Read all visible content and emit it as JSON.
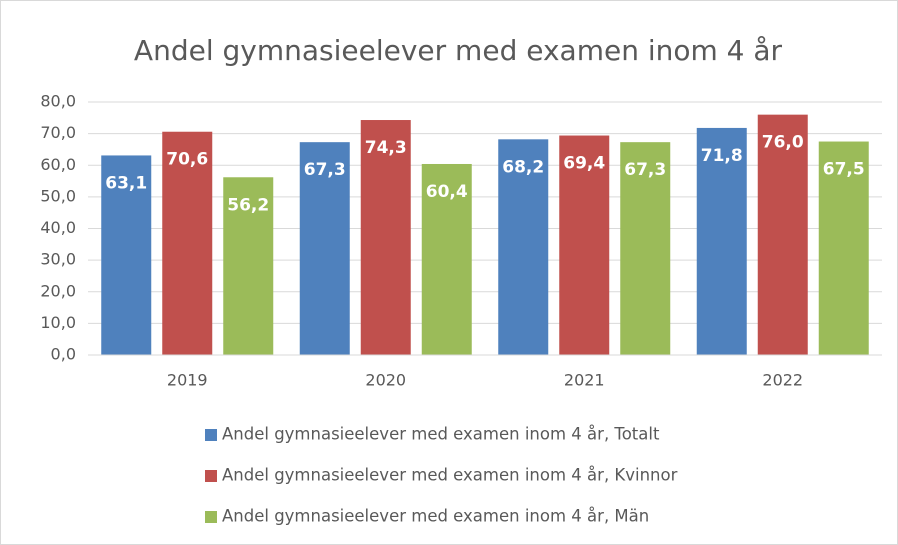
{
  "chart_data": {
    "type": "bar",
    "title": "Andel gymnasieelever med examen inom 4 år",
    "categories": [
      "2019",
      "2020",
      "2021",
      "2022"
    ],
    "series": [
      {
        "name": "Andel gymnasieelever med examen inom 4 år, Totalt",
        "color": "#4f81bd",
        "values": [
          63.1,
          67.3,
          68.2,
          71.8
        ],
        "value_labels": [
          "63,1",
          "67,3",
          "68,2",
          "71,8"
        ]
      },
      {
        "name": "Andel gymnasieelever med examen inom 4 år, Kvinnor",
        "color": "#c0504d",
        "values": [
          70.6,
          74.3,
          69.4,
          76.0
        ],
        "value_labels": [
          "70,6",
          "74,3",
          "69,4",
          "76,0"
        ]
      },
      {
        "name": "Andel gymnasieelever med examen inom 4 år, Män",
        "color": "#9bbb59",
        "values": [
          56.2,
          60.4,
          67.3,
          67.5
        ],
        "value_labels": [
          "56,2",
          "60,4",
          "67,3",
          "67,5"
        ]
      }
    ],
    "ylim": [
      0,
      80
    ],
    "yticks": [
      {
        "value": 0,
        "label": "0,0"
      },
      {
        "value": 10,
        "label": "10,0"
      },
      {
        "value": 20,
        "label": "20,0"
      },
      {
        "value": 30,
        "label": "30,0"
      },
      {
        "value": 40,
        "label": "40,0"
      },
      {
        "value": 50,
        "label": "50,0"
      },
      {
        "value": 60,
        "label": "60,0"
      },
      {
        "value": 70,
        "label": "70,0"
      },
      {
        "value": 80,
        "label": "80,0"
      }
    ],
    "grid": true,
    "legend": "bottom"
  }
}
